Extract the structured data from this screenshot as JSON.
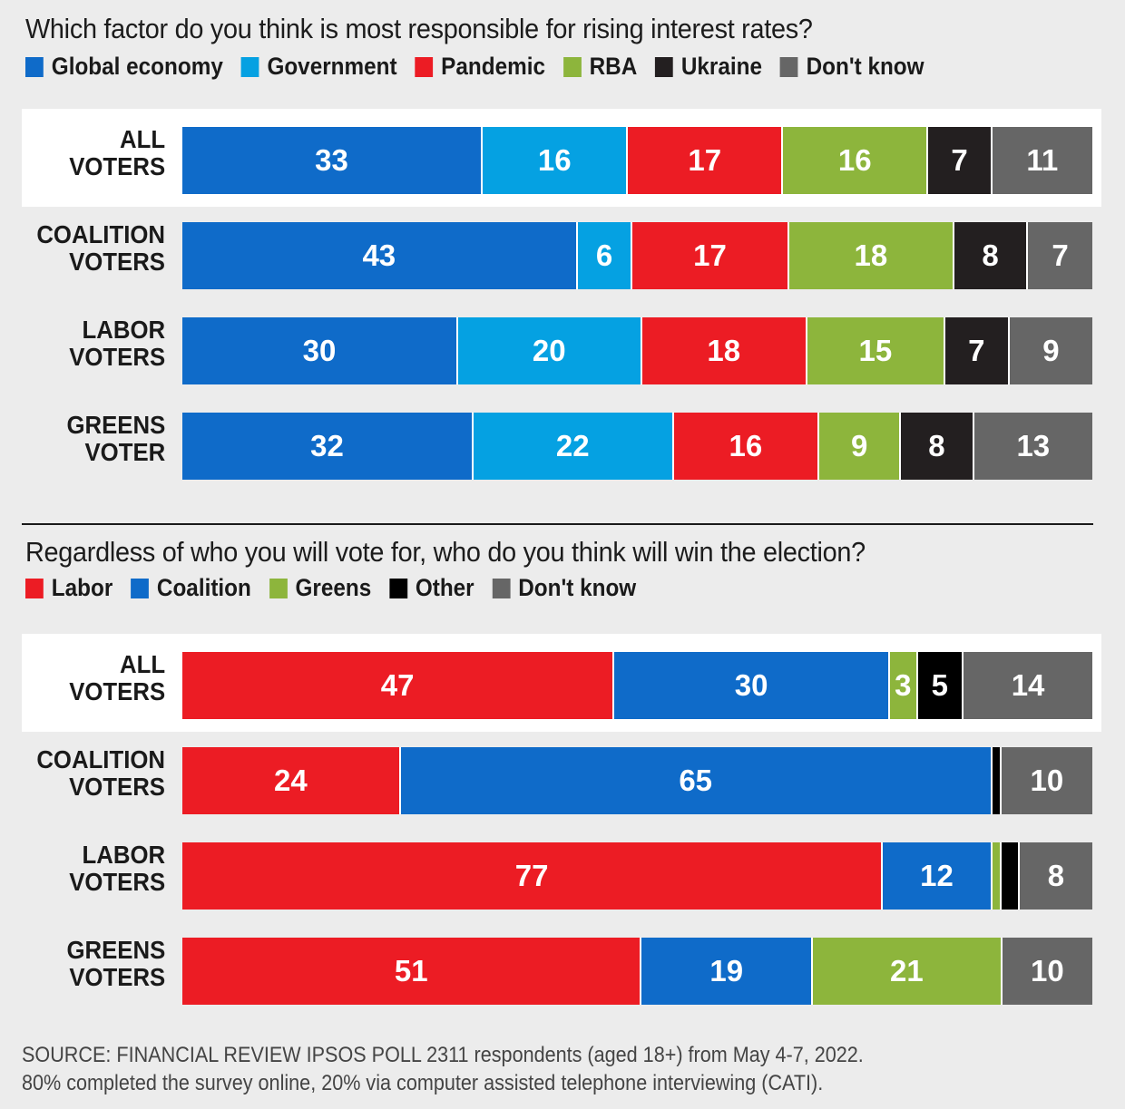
{
  "chart_data": [
    {
      "type": "bar",
      "orientation": "horizontal",
      "stacked": true,
      "title": "Which factor do you think is most responsible for rising interest rates?",
      "categories": [
        "ALL VOTERS",
        "COALITION VOTERS",
        "LABOR VOTERS",
        "GREENS VOTER"
      ],
      "category_lines": [
        [
          "ALL",
          "VOTERS"
        ],
        [
          "COALITION",
          "VOTERS"
        ],
        [
          "LABOR",
          "VOTERS"
        ],
        [
          "GREENS",
          "VOTER"
        ]
      ],
      "highlight_row": 0,
      "series": [
        {
          "name": "Global economy",
          "color": "#0f6bc9",
          "values": [
            33,
            43,
            30,
            32
          ]
        },
        {
          "name": "Government",
          "color": "#05a1e2",
          "values": [
            16,
            6,
            20,
            22
          ]
        },
        {
          "name": "Pandemic",
          "color": "#ec1c24",
          "values": [
            17,
            17,
            18,
            16
          ]
        },
        {
          "name": "RBA",
          "color": "#8db53c",
          "values": [
            16,
            18,
            15,
            9
          ]
        },
        {
          "name": "Ukraine",
          "color": "#231f20",
          "values": [
            7,
            8,
            7,
            8
          ]
        },
        {
          "name": "Don't know",
          "color": "#666666",
          "values": [
            11,
            7,
            9,
            13
          ]
        }
      ],
      "xlim": [
        0,
        100
      ],
      "unit": "%"
    },
    {
      "type": "bar",
      "orientation": "horizontal",
      "stacked": true,
      "title": "Regardless of who you will vote for, who do you think will win the election?",
      "categories": [
        "ALL VOTERS",
        "COALITION VOTERS",
        "LABOR VOTERS",
        "GREENS VOTERS"
      ],
      "category_lines": [
        [
          "ALL",
          "VOTERS"
        ],
        [
          "COALITION",
          "VOTERS"
        ],
        [
          "LABOR",
          "VOTERS"
        ],
        [
          "GREENS",
          "VOTERS"
        ]
      ],
      "highlight_row": 0,
      "series": [
        {
          "name": "Labor",
          "color": "#ec1c24",
          "values": [
            47,
            24,
            77,
            51
          ]
        },
        {
          "name": "Coalition",
          "color": "#0f6bc9",
          "values": [
            30,
            65,
            12,
            19
          ]
        },
        {
          "name": "Greens",
          "color": "#8db53c",
          "values": [
            3,
            0,
            1,
            21
          ]
        },
        {
          "name": "Other",
          "color": "#000000",
          "values": [
            5,
            1,
            2,
            0
          ]
        },
        {
          "name": "Don't know",
          "color": "#666666",
          "values": [
            14,
            10,
            8,
            10
          ]
        }
      ],
      "label_min_value": 3,
      "xlim": [
        0,
        100
      ],
      "unit": "%"
    }
  ],
  "source": {
    "line1": "SOURCE: FINANCIAL REVIEW  IPSOS POLL   2311 respondents (aged 18+) from May 4-7, 2022.",
    "line2": "80% completed the survey online, 20% via computer assisted telephone interviewing (CATI)."
  }
}
